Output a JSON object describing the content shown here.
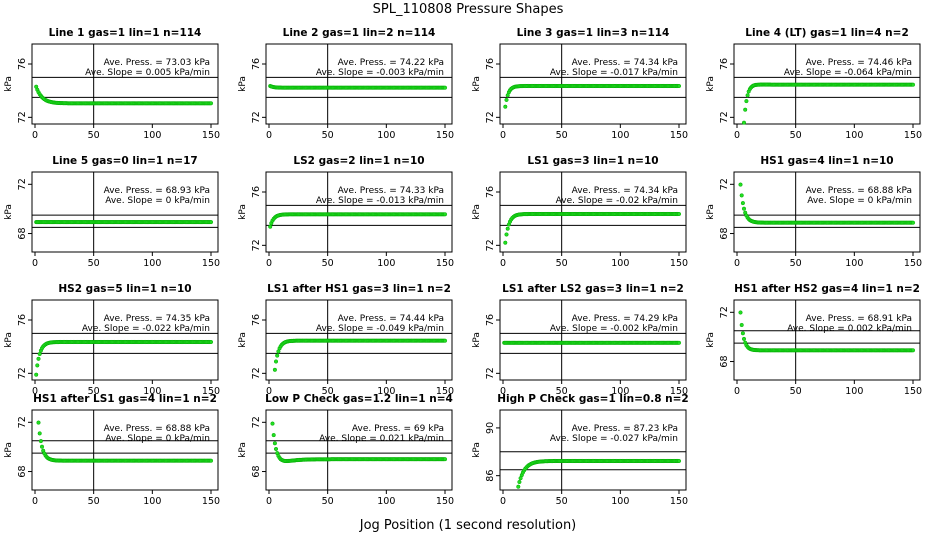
{
  "page": {
    "title": "SPL_110808  Pressure Shapes",
    "xlabel": "Jog Position (1 second resolution)"
  },
  "colors": {
    "marker": "#22dd22",
    "marker_edge": "#00aa00",
    "axis": "#000000"
  },
  "chart_data": [
    {
      "type": "scatter",
      "title": "Line 1 gas=1 lin=1 n=114",
      "ylabel": "kPa",
      "xlim": [
        0,
        150
      ],
      "ylim": [
        71.5,
        77.5
      ],
      "xticks": [
        0,
        50,
        100,
        150
      ],
      "yticks": [
        72,
        76
      ],
      "hlines": [
        73.5,
        75.0
      ],
      "vline": 50,
      "ann_press": "Ave. Press. = 73.03  kPa",
      "ann_slope": "Ave. Slope =  0.005  kPa/min",
      "shape": {
        "kind": "decay",
        "start": 74.3,
        "end": 73.05,
        "tau": 5,
        "from": 1
      }
    },
    {
      "type": "scatter",
      "title": "Line 2 gas=1 lin=2 n=114",
      "ylabel": "kPa",
      "xlim": [
        0,
        150
      ],
      "ylim": [
        71.5,
        77.5
      ],
      "xticks": [
        0,
        50,
        100,
        150
      ],
      "yticks": [
        72,
        76
      ],
      "hlines": [
        73.5,
        75.0
      ],
      "vline": 50,
      "ann_press": "Ave. Press. = 74.22  kPa",
      "ann_slope": "Ave. Slope =  -0.003  kPa/min",
      "shape": {
        "kind": "decay",
        "start": 74.35,
        "end": 74.22,
        "tau": 3,
        "from": 1
      }
    },
    {
      "type": "scatter",
      "title": "Line 3 gas=1 lin=3 n=114",
      "ylabel": "kPa",
      "xlim": [
        0,
        150
      ],
      "ylim": [
        71.5,
        77.5
      ],
      "xticks": [
        0,
        50,
        100,
        150
      ],
      "yticks": [
        72,
        76
      ],
      "hlines": [
        73.5,
        75.0
      ],
      "vline": 50,
      "ann_press": "Ave. Press. = 74.34  kPa",
      "ann_slope": "Ave. Slope =  -0.017  kPa/min",
      "shape": {
        "kind": "decay",
        "start": 72.8,
        "end": 74.35,
        "tau": 2.5,
        "from": 2
      }
    },
    {
      "type": "scatter",
      "title": "Line 4 (LT) gas=1 lin=4 n=2",
      "ylabel": "kPa",
      "xlim": [
        0,
        150
      ],
      "ylim": [
        71.5,
        77.5
      ],
      "xticks": [
        0,
        50,
        100,
        150
      ],
      "yticks": [
        72,
        76
      ],
      "hlines": [
        73.5,
        75.0
      ],
      "vline": 50,
      "ann_press": "Ave. Press. = 74.46  kPa",
      "ann_slope": "Ave. Slope =  -0.064  kPa/min",
      "shape": {
        "kind": "overshoot",
        "start": 71.6,
        "end": 74.45,
        "tau": 3,
        "bump": 0.25,
        "from": 6
      }
    },
    {
      "type": "scatter",
      "title": "Line 5 gas=0 lin=1 n=17",
      "ylabel": "kPa",
      "xlim": [
        0,
        150
      ],
      "ylim": [
        66.5,
        73.0
      ],
      "xticks": [
        0,
        50,
        100,
        150
      ],
      "yticks": [
        68,
        72
      ],
      "hlines": [
        68.5,
        69.5
      ],
      "vline": 50,
      "ann_press": "Ave. Press. = 68.93  kPa",
      "ann_slope": "Ave. Slope =  0  kPa/min",
      "shape": {
        "kind": "flat",
        "start": 68.93,
        "end": 68.93,
        "tau": 1,
        "from": 1
      }
    },
    {
      "type": "scatter",
      "title": "LS2 gas=2 lin=1 n=10",
      "ylabel": "kPa",
      "xlim": [
        0,
        150
      ],
      "ylim": [
        71.5,
        77.5
      ],
      "xticks": [
        0,
        50,
        100,
        150
      ],
      "yticks": [
        72,
        76
      ],
      "hlines": [
        73.5,
        75.0
      ],
      "vline": 50,
      "ann_press": "Ave. Press. = 74.33  kPa",
      "ann_slope": "Ave. Slope =  -0.013  kPa/min",
      "shape": {
        "kind": "decay",
        "start": 73.4,
        "end": 74.33,
        "tau": 3,
        "from": 1
      }
    },
    {
      "type": "scatter",
      "title": "LS1 gas=3 lin=1 n=10",
      "ylabel": "kPa",
      "xlim": [
        0,
        150
      ],
      "ylim": [
        71.5,
        77.5
      ],
      "xticks": [
        0,
        50,
        100,
        150
      ],
      "yticks": [
        72,
        76
      ],
      "hlines": [
        73.5,
        75.0
      ],
      "vline": 50,
      "ann_press": "Ave. Press. = 74.34  kPa",
      "ann_slope": "Ave. Slope =  -0.02  kPa/min",
      "shape": {
        "kind": "decay",
        "start": 72.2,
        "end": 74.35,
        "tau": 3,
        "from": 2
      }
    },
    {
      "type": "scatter",
      "title": "HS1 gas=4 lin=1 n=10",
      "ylabel": "kPa",
      "xlim": [
        0,
        150
      ],
      "ylim": [
        66.5,
        73.0
      ],
      "xticks": [
        0,
        50,
        100,
        150
      ],
      "yticks": [
        68,
        72
      ],
      "hlines": [
        68.5,
        69.5
      ],
      "vline": 50,
      "ann_press": "Ave. Press. = 68.88  kPa",
      "ann_slope": "Ave. Slope =  0  kPa/min",
      "shape": {
        "kind": "decay",
        "start": 73.2,
        "end": 68.88,
        "tau": 3,
        "from": 2
      }
    },
    {
      "type": "scatter",
      "title": "HS2 gas=5 lin=1 n=10",
      "ylabel": "kPa",
      "xlim": [
        0,
        150
      ],
      "ylim": [
        71.5,
        77.5
      ],
      "xticks": [
        0,
        50,
        100,
        150
      ],
      "yticks": [
        72,
        76
      ],
      "hlines": [
        73.5,
        75.0
      ],
      "vline": 50,
      "ann_press": "Ave. Press. = 74.35  kPa",
      "ann_slope": "Ave. Slope =  -0.022  kPa/min",
      "shape": {
        "kind": "decay",
        "start": 71.9,
        "end": 74.35,
        "tau": 3,
        "from": 1
      }
    },
    {
      "type": "scatter",
      "title": "LS1 after HS1 gas=3 lin=1 n=2",
      "ylabel": "kPa",
      "xlim": [
        0,
        150
      ],
      "ylim": [
        71.5,
        77.5
      ],
      "xticks": [
        0,
        50,
        100,
        150
      ],
      "yticks": [
        72,
        76
      ],
      "hlines": [
        73.5,
        75.0
      ],
      "vline": 50,
      "ann_press": "Ave. Press. = 74.44  kPa",
      "ann_slope": "Ave. Slope =  -0.049  kPa/min",
      "shape": {
        "kind": "decay",
        "start": 71.4,
        "end": 74.45,
        "tau": 3,
        "from": 4
      }
    },
    {
      "type": "scatter",
      "title": "LS1 after LS2 gas=3 lin=1 n=2",
      "ylabel": "kPa",
      "xlim": [
        0,
        150
      ],
      "ylim": [
        71.5,
        77.5
      ],
      "xticks": [
        0,
        50,
        100,
        150
      ],
      "yticks": [
        72,
        76
      ],
      "hlines": [
        73.5,
        75.0
      ],
      "vline": 50,
      "ann_press": "Ave. Press. = 74.29  kPa",
      "ann_slope": "Ave. Slope =  -0.002  kPa/min",
      "shape": {
        "kind": "flat",
        "start": 74.3,
        "end": 74.29,
        "tau": 1,
        "from": 1
      }
    },
    {
      "type": "scatter",
      "title": "HS1 after HS2 gas=4 lin=1 n=2",
      "ylabel": "kPa",
      "xlim": [
        0,
        150
      ],
      "ylim": [
        66.5,
        73.0
      ],
      "xticks": [
        0,
        50,
        100,
        150
      ],
      "yticks": [
        68,
        72
      ],
      "hlines": [
        69.5,
        70.5
      ],
      "vline": 50,
      "ann_press": "Ave. Press. = 68.91  kPa",
      "ann_slope": "Ave. Slope =  0.002  kPa/min",
      "shape": {
        "kind": "decay",
        "start": 73.5,
        "end": 68.91,
        "tau": 2.5,
        "from": 2
      }
    },
    {
      "type": "scatter",
      "title": "HS1 after LS1 gas=4 lin=1 n=2",
      "ylabel": "kPa",
      "xlim": [
        0,
        150
      ],
      "ylim": [
        66.5,
        73.0
      ],
      "xticks": [
        0,
        50,
        100,
        150
      ],
      "yticks": [
        68,
        72
      ],
      "hlines": [
        69.5,
        70.5
      ],
      "vline": 50,
      "ann_press": "Ave. Press. = 68.88  kPa",
      "ann_slope": "Ave. Slope =  0  kPa/min",
      "shape": {
        "kind": "decay",
        "start": 73.2,
        "end": 68.88,
        "tau": 3,
        "from": 2
      }
    },
    {
      "type": "scatter",
      "title": "Low P Check gas=1.2 lin=1 n=4",
      "ylabel": "kPa",
      "xlim": [
        0,
        150
      ],
      "ylim": [
        66.5,
        73.0
      ],
      "xticks": [
        0,
        50,
        100,
        150
      ],
      "yticks": [
        68,
        72
      ],
      "hlines": [
        69.5,
        70.5
      ],
      "vline": 50,
      "ann_press": "Ave. Press. = 69  kPa",
      "ann_slope": "Ave. Slope =  0.021  kPa/min",
      "shape": {
        "kind": "undershoot",
        "start": 73.2,
        "end": 69.0,
        "tau": 3,
        "bump": 0.3,
        "from": 2
      }
    },
    {
      "type": "scatter",
      "title": "High P Check gas=1 lin=0.8 n=2",
      "ylabel": "kPa",
      "xlim": [
        0,
        150
      ],
      "ylim": [
        84.8,
        91.5
      ],
      "xticks": [
        0,
        50,
        100,
        150
      ],
      "yticks": [
        86,
        90
      ],
      "hlines": [
        86.5,
        88.0
      ],
      "vline": 50,
      "ann_press": "Ave. Press. = 87.23  kPa",
      "ann_slope": "Ave. Slope =  -0.027  kPa/min",
      "shape": {
        "kind": "decay",
        "start": 84.6,
        "end": 87.23,
        "tau": 5,
        "from": 12
      }
    }
  ]
}
